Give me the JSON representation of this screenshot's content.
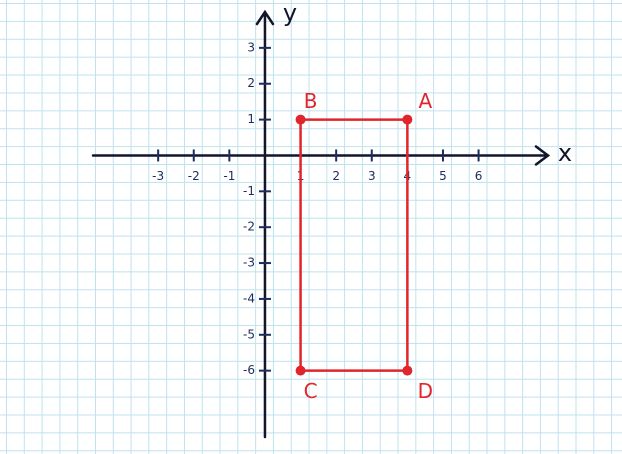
{
  "chart_data": {
    "type": "scatter",
    "x_label": "x",
    "y_label": "y",
    "x": [
      4,
      1,
      1,
      4
    ],
    "values": [
      1,
      1,
      -6,
      -6
    ],
    "point_labels": [
      "A",
      "B",
      "C",
      "D"
    ],
    "closed": true,
    "color": "#e0262c",
    "xlim": [
      -4.83,
      7.95
    ],
    "ylim": [
      -7.85,
      4.0
    ],
    "xticks": [
      -3,
      -2,
      -1,
      1,
      2,
      3,
      4,
      5,
      6
    ],
    "yticks": [
      3,
      2,
      1,
      -1,
      -2,
      -3,
      -4,
      -5,
      -6
    ],
    "grid": true
  }
}
